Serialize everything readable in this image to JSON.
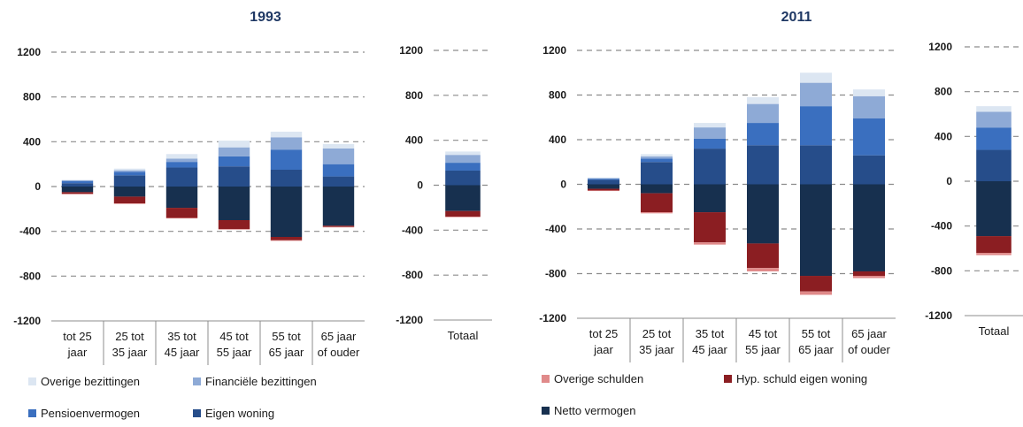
{
  "colors": {
    "overige_bezittingen": "#dce6f2",
    "financiele_bezittingen": "#8eaad6",
    "pensioenvermogen": "#3a6fbf",
    "eigen_woning": "#264d8a",
    "netto_vermogen": "#17304f",
    "hyp_schuld": "#8b1e22",
    "overige_schulden": "#e08a8a"
  },
  "legend": {
    "left": [
      {
        "key": "overige_bezittingen",
        "label": "Overige bezittingen"
      },
      {
        "key": "financiele_bezittingen",
        "label": "Financiële bezittingen"
      },
      {
        "key": "pensioenvermogen",
        "label": "Pensioenvermogen"
      },
      {
        "key": "eigen_woning",
        "label": "Eigen woning"
      }
    ],
    "right": [
      {
        "key": "overige_schulden",
        "label": "Overige schulden"
      },
      {
        "key": "hyp_schuld",
        "label": "Hyp. schuld eigen woning"
      },
      {
        "key": "netto_vermogen",
        "label": "Netto vermogen"
      }
    ]
  },
  "chart_data": [
    {
      "type": "bar",
      "title": "1993",
      "stacked": true,
      "ylim": [
        -1200,
        1200
      ],
      "yticks": [
        -1200,
        -800,
        -400,
        0,
        400,
        800,
        1200
      ],
      "grid": true,
      "categories": [
        [
          "tot 25",
          "jaar"
        ],
        [
          "25 tot",
          "35 jaar"
        ],
        [
          "35 tot",
          "45 jaar"
        ],
        [
          "45 tot",
          "55 jaar"
        ],
        [
          "55 tot",
          "65 jaar"
        ],
        [
          "65 jaar",
          "of ouder"
        ]
      ],
      "positive_series": [
        {
          "name": "Eigen woning",
          "key": "eigen_woning",
          "values": [
            30,
            100,
            170,
            180,
            150,
            90
          ]
        },
        {
          "name": "Pensioenvermogen",
          "key": "pensioenvermogen",
          "values": [
            20,
            30,
            50,
            90,
            180,
            110
          ]
        },
        {
          "name": "Financiële bezittingen",
          "key": "financiele_bezittingen",
          "values": [
            5,
            15,
            30,
            80,
            110,
            140
          ]
        },
        {
          "name": "Overige bezittingen",
          "key": "overige_bezittingen",
          "values": [
            5,
            15,
            40,
            60,
            50,
            40
          ]
        }
      ],
      "negative_series": [
        {
          "name": "Netto vermogen",
          "key": "netto_vermogen",
          "values": [
            -50,
            -90,
            -190,
            -300,
            -450,
            -350
          ]
        },
        {
          "name": "Hyp. schuld eigen woning",
          "key": "hyp_schuld",
          "values": [
            -15,
            -60,
            -90,
            -80,
            -30,
            -10
          ]
        },
        {
          "name": "Overige schulden",
          "key": "overige_schulden",
          "values": [
            -5,
            -5,
            -5,
            -5,
            -5,
            -5
          ]
        }
      ]
    },
    {
      "type": "bar",
      "stacked": true,
      "ylim": [
        -1200,
        1200
      ],
      "yticks": [
        -1200,
        -800,
        -400,
        0,
        400,
        800,
        1200
      ],
      "grid": true,
      "categories": [
        [
          "Totaal"
        ]
      ],
      "positive_series": [
        {
          "name": "Eigen woning",
          "key": "eigen_woning",
          "values": [
            130
          ]
        },
        {
          "name": "Pensioenvermogen",
          "key": "pensioenvermogen",
          "values": [
            70
          ]
        },
        {
          "name": "Financiële bezittingen",
          "key": "financiele_bezittingen",
          "values": [
            70
          ]
        },
        {
          "name": "Overige bezittingen",
          "key": "overige_bezittingen",
          "values": [
            30
          ]
        }
      ],
      "negative_series": [
        {
          "name": "Netto vermogen",
          "key": "netto_vermogen",
          "values": [
            -230
          ]
        },
        {
          "name": "Hyp. schuld eigen woning",
          "key": "hyp_schuld",
          "values": [
            -50
          ]
        },
        {
          "name": "Overige schulden",
          "key": "overige_schulden",
          "values": [
            -5
          ]
        }
      ]
    },
    {
      "type": "bar",
      "title": "2011",
      "stacked": true,
      "ylim": [
        -1200,
        1200
      ],
      "yticks": [
        -1200,
        -800,
        -400,
        0,
        400,
        800,
        1200
      ],
      "grid": true,
      "categories": [
        [
          "tot 25",
          "jaar"
        ],
        [
          "25 tot",
          "35 jaar"
        ],
        [
          "35 tot",
          "45 jaar"
        ],
        [
          "45 tot",
          "55 jaar"
        ],
        [
          "55 tot",
          "65 jaar"
        ],
        [
          "65 jaar",
          "of ouder"
        ]
      ],
      "positive_series": [
        {
          "name": "Eigen woning",
          "key": "eigen_woning",
          "values": [
            40,
            200,
            320,
            350,
            350,
            260
          ]
        },
        {
          "name": "Pensioenvermogen",
          "key": "pensioenvermogen",
          "values": [
            10,
            30,
            90,
            200,
            350,
            330
          ]
        },
        {
          "name": "Financiële bezittingen",
          "key": "financiele_bezittingen",
          "values": [
            5,
            20,
            100,
            170,
            210,
            200
          ]
        },
        {
          "name": "Overige bezittingen",
          "key": "overige_bezittingen",
          "values": [
            5,
            20,
            40,
            60,
            90,
            60
          ]
        }
      ],
      "negative_series": [
        {
          "name": "Netto vermogen",
          "key": "netto_vermogen",
          "values": [
            -40,
            -80,
            -250,
            -530,
            -820,
            -780
          ]
        },
        {
          "name": "Hyp. schuld eigen woning",
          "key": "hyp_schuld",
          "values": [
            -15,
            -170,
            -270,
            -220,
            -140,
            -40
          ]
        },
        {
          "name": "Overige schulden",
          "key": "overige_schulden",
          "values": [
            -5,
            -10,
            -20,
            -30,
            -30,
            -20
          ]
        }
      ]
    },
    {
      "type": "bar",
      "stacked": true,
      "ylim": [
        -1200,
        1200
      ],
      "yticks": [
        -1200,
        -800,
        -400,
        0,
        400,
        800,
        1200
      ],
      "grid": true,
      "categories": [
        [
          "Totaal"
        ]
      ],
      "positive_series": [
        {
          "name": "Eigen woning",
          "key": "eigen_woning",
          "values": [
            280
          ]
        },
        {
          "name": "Pensioenvermogen",
          "key": "pensioenvermogen",
          "values": [
            200
          ]
        },
        {
          "name": "Financiële bezittingen",
          "key": "financiele_bezittingen",
          "values": [
            140
          ]
        },
        {
          "name": "Overige bezittingen",
          "key": "overige_bezittingen",
          "values": [
            50
          ]
        }
      ],
      "negative_series": [
        {
          "name": "Netto vermogen",
          "key": "netto_vermogen",
          "values": [
            -490
          ]
        },
        {
          "name": "Hyp. schuld eigen woning",
          "key": "hyp_schuld",
          "values": [
            -150
          ]
        },
        {
          "name": "Overige schulden",
          "key": "overige_schulden",
          "values": [
            -20
          ]
        }
      ]
    }
  ]
}
